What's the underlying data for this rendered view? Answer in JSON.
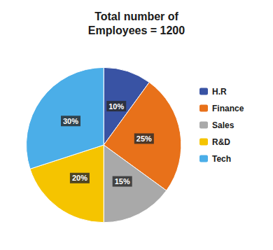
{
  "chart_data": {
    "type": "pie",
    "title": "Total number of\nEmployees = 1200",
    "categories": [
      "H.R",
      "Finance",
      "Sales",
      "R&D",
      "Tech"
    ],
    "values": [
      10,
      25,
      15,
      20,
      30
    ],
    "value_labels": [
      "10%",
      "25%",
      "15%",
      "20%",
      "30%"
    ],
    "data_labels": true,
    "colors": [
      "#3953A4",
      "#E8711A",
      "#A9A9A9",
      "#F5C400",
      "#4BAEE8"
    ],
    "legend": "right"
  }
}
